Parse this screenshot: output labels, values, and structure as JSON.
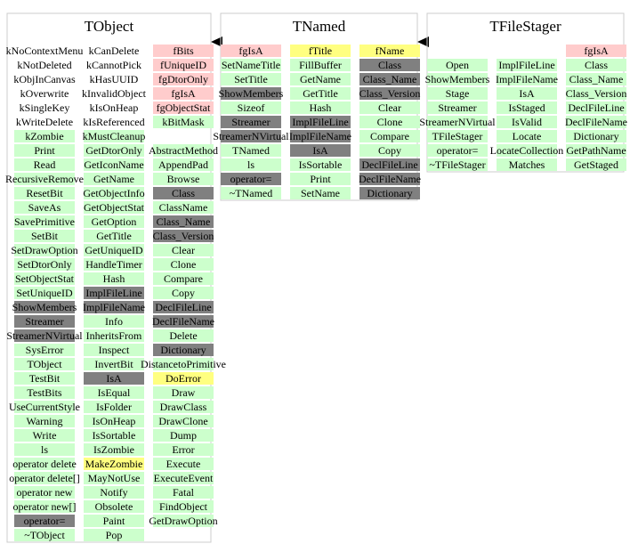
{
  "classes": [
    {
      "name": "TObject",
      "columns": [
        [
          [
            {
              "label": "kNoContextMenu",
              "kind": "enum"
            },
            {
              "label": "kNotDeleted",
              "kind": "enum"
            },
            {
              "label": "kObjInCanvas",
              "kind": "enum"
            },
            {
              "label": "kOverwrite",
              "kind": "enum"
            },
            {
              "label": "kSingleKey",
              "kind": "enum"
            },
            {
              "label": "kWriteDelete",
              "kind": "enum"
            },
            {
              "label": "kZombie"
            },
            {
              "label": "Print"
            },
            {
              "label": "Read"
            },
            {
              "label": "RecursiveRemove"
            },
            {
              "label": "ResetBit"
            },
            {
              "label": "SaveAs"
            },
            {
              "label": "SavePrimitive"
            },
            {
              "label": "SetBit"
            },
            {
              "label": "SetDrawOption"
            },
            {
              "label": "SetDtorOnly"
            },
            {
              "label": "SetObjectStat"
            },
            {
              "label": "SetUniqueID"
            },
            {
              "label": "ShowMembers",
              "kind": "dictionary"
            },
            {
              "label": "Streamer",
              "kind": "dictionary"
            },
            {
              "label": "StreamerNVirtual",
              "kind": "dictionary"
            },
            {
              "label": "SysError"
            },
            {
              "label": "TObject"
            },
            {
              "label": "TestBit"
            },
            {
              "label": "TestBits"
            },
            {
              "label": "UseCurrentStyle"
            },
            {
              "label": "Warning"
            },
            {
              "label": "Write"
            },
            {
              "label": "ls"
            },
            {
              "label": "operator delete"
            },
            {
              "label": "operator delete[]"
            },
            {
              "label": "operator new"
            },
            {
              "label": "operator new[]"
            },
            {
              "label": "operator=",
              "kind": "dictionary"
            },
            {
              "label": "~TObject"
            }
          ]
        ],
        [
          [
            {
              "label": "kCanDelete",
              "kind": "enum"
            },
            {
              "label": "kCannotPick",
              "kind": "enum"
            },
            {
              "label": "kHasUUID",
              "kind": "enum"
            },
            {
              "label": "kInvalidObject",
              "kind": "enum"
            },
            {
              "label": "kIsOnHeap",
              "kind": "enum"
            },
            {
              "label": "kIsReferenced",
              "kind": "enum"
            },
            {
              "label": "kMustCleanup"
            },
            {
              "label": "GetDtorOnly"
            },
            {
              "label": "GetIconName"
            },
            {
              "label": "GetName"
            },
            {
              "label": "GetObjectInfo"
            },
            {
              "label": "GetObjectStat"
            },
            {
              "label": "GetOption"
            },
            {
              "label": "GetTitle"
            },
            {
              "label": "GetUniqueID"
            },
            {
              "label": "HandleTimer"
            },
            {
              "label": "Hash"
            },
            {
              "label": "ImplFileLine",
              "kind": "dictionary"
            },
            {
              "label": "ImplFileName",
              "kind": "dictionary"
            },
            {
              "label": "Info"
            },
            {
              "label": "InheritsFrom"
            },
            {
              "label": "Inspect"
            },
            {
              "label": "InvertBit"
            },
            {
              "label": "IsA",
              "kind": "dictionary"
            },
            {
              "label": "IsEqual"
            },
            {
              "label": "IsFolder"
            },
            {
              "label": "IsOnHeap"
            },
            {
              "label": "IsSortable"
            },
            {
              "label": "IsZombie"
            },
            {
              "label": "MakeZombie",
              "kind": "protected"
            },
            {
              "label": "MayNotUse"
            },
            {
              "label": "Notify"
            },
            {
              "label": "Obsolete"
            },
            {
              "label": "Paint"
            },
            {
              "label": "Pop"
            }
          ]
        ],
        [
          [
            {
              "label": "fBits",
              "kind": "member"
            },
            {
              "label": "fUniqueID",
              "kind": "member"
            },
            {
              "label": "fgDtorOnly",
              "kind": "member"
            },
            {
              "label": "fgIsA",
              "kind": "member"
            },
            {
              "label": "fgObjectStat",
              "kind": "member"
            },
            {
              "label": "kBitMask"
            }
          ],
          [
            {
              "label": "AbstractMethod"
            },
            {
              "label": "AppendPad"
            },
            {
              "label": "Browse"
            },
            {
              "label": "Class",
              "kind": "dictionary"
            },
            {
              "label": "ClassName"
            },
            {
              "label": "Class_Name",
              "kind": "dictionary"
            },
            {
              "label": "Class_Version",
              "kind": "dictionary"
            },
            {
              "label": "Clear"
            },
            {
              "label": "Clone"
            },
            {
              "label": "Compare"
            },
            {
              "label": "Copy"
            },
            {
              "label": "DeclFileLine",
              "kind": "dictionary"
            },
            {
              "label": "DeclFileName",
              "kind": "dictionary"
            },
            {
              "label": "Delete"
            },
            {
              "label": "Dictionary",
              "kind": "dictionary"
            },
            {
              "label": "DistancetoPrimitive"
            },
            {
              "label": "DoError",
              "kind": "protected"
            },
            {
              "label": "Draw"
            },
            {
              "label": "DrawClass"
            },
            {
              "label": "DrawClone"
            },
            {
              "label": "Dump"
            },
            {
              "label": "Error"
            },
            {
              "label": "Execute"
            },
            {
              "label": "ExecuteEvent"
            },
            {
              "label": "Fatal"
            },
            {
              "label": "FindObject"
            },
            {
              "label": "GetDrawOption"
            }
          ]
        ]
      ]
    },
    {
      "name": "TNamed",
      "columns": [
        [
          [
            {
              "label": "fgIsA",
              "kind": "member"
            },
            {
              "label": "SetNameTitle"
            },
            {
              "label": "SetTitle"
            },
            {
              "label": "ShowMembers",
              "kind": "dictionary"
            },
            {
              "label": "Sizeof"
            },
            {
              "label": "Streamer",
              "kind": "dictionary"
            },
            {
              "label": "StreamerNVirtual",
              "kind": "dictionary"
            },
            {
              "label": "TNamed"
            },
            {
              "label": "ls"
            },
            {
              "label": "operator=",
              "kind": "dictionary"
            },
            {
              "label": "~TNamed"
            }
          ]
        ],
        [
          [
            {
              "label": "fTitle",
              "kind": "protected"
            },
            {
              "label": "FillBuffer"
            },
            {
              "label": "GetName"
            },
            {
              "label": "GetTitle"
            },
            {
              "label": "Hash"
            },
            {
              "label": "ImplFileLine",
              "kind": "dictionary"
            },
            {
              "label": "ImplFileName",
              "kind": "dictionary"
            },
            {
              "label": "IsA",
              "kind": "dictionary"
            },
            {
              "label": "IsSortable"
            },
            {
              "label": "Print"
            },
            {
              "label": "SetName"
            }
          ]
        ],
        [
          [
            {
              "label": "fName",
              "kind": "protected"
            },
            {
              "label": "Class",
              "kind": "dictionary"
            },
            {
              "label": "Class_Name",
              "kind": "dictionary"
            },
            {
              "label": "Class_Version",
              "kind": "dictionary"
            },
            {
              "label": "Clear"
            },
            {
              "label": "Clone"
            },
            {
              "label": "Compare"
            },
            {
              "label": "Copy"
            },
            {
              "label": "DeclFileLine",
              "kind": "dictionary"
            },
            {
              "label": "DeclFileName",
              "kind": "dictionary"
            },
            {
              "label": "Dictionary",
              "kind": "dictionary"
            }
          ]
        ]
      ]
    },
    {
      "name": "TFileStager",
      "columns": [
        [
          [],
          [
            {
              "label": "Open"
            },
            {
              "label": "ShowMembers"
            },
            {
              "label": "Stage"
            },
            {
              "label": "Streamer"
            },
            {
              "label": "StreamerNVirtual"
            },
            {
              "label": "TFileStager"
            },
            {
              "label": "operator="
            },
            {
              "label": "~TFileStager"
            }
          ]
        ],
        [
          [],
          [
            {
              "label": "ImplFileLine"
            },
            {
              "label": "ImplFileName"
            },
            {
              "label": "IsA"
            },
            {
              "label": "IsStaged"
            },
            {
              "label": "IsValid"
            },
            {
              "label": "Locate"
            },
            {
              "label": "LocateCollection"
            },
            {
              "label": "Matches"
            }
          ]
        ],
        [
          [
            {
              "label": "fgIsA",
              "kind": "member"
            },
            {
              "label": "Class"
            },
            {
              "label": "Class_Name"
            },
            {
              "label": "Class_Version"
            },
            {
              "label": "DeclFileLine"
            },
            {
              "label": "DeclFileName"
            },
            {
              "label": "Dictionary"
            },
            {
              "label": "GetPathName"
            },
            {
              "label": "GetStaged"
            }
          ]
        ]
      ]
    }
  ]
}
